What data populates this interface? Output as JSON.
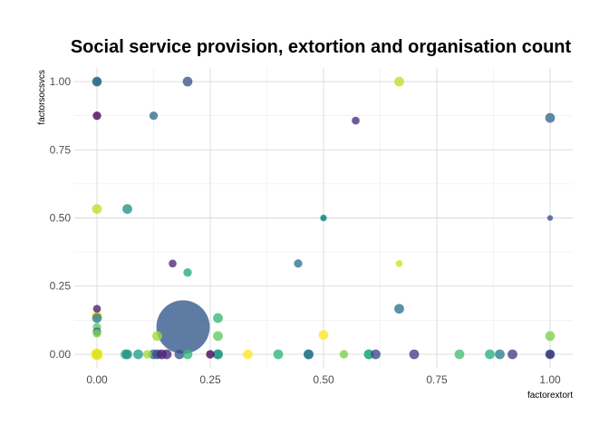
{
  "chart_data": {
    "type": "scatter",
    "title": "Social service provision, extortion and organisation count",
    "xlabel": "factorextort",
    "ylabel": "factorsocsvcs",
    "xlim": [
      -0.05,
      1.05
    ],
    "ylim": [
      -0.05,
      1.05
    ],
    "x_ticks": [
      "0.00",
      "0.25",
      "0.50",
      "0.75",
      "1.00"
    ],
    "y_ticks": [
      "0.00",
      "0.25",
      "0.50",
      "0.75",
      "1.00"
    ],
    "grid": true,
    "legend": "none",
    "size_encoding": "organisation count (area)",
    "points": [
      {
        "x": 0.0,
        "y": 1.0,
        "size": 2,
        "color": "#2a788e"
      },
      {
        "x": 0.0,
        "y": 1.0,
        "size": 1.5,
        "color": "#31688e"
      },
      {
        "x": 0.2,
        "y": 1.0,
        "size": 2,
        "color": "#3b528b"
      },
      {
        "x": 0.667,
        "y": 1.0,
        "size": 2,
        "color": "#bddf26"
      },
      {
        "x": 0.0,
        "y": 0.875,
        "size": 1.5,
        "color": "#440154"
      },
      {
        "x": 0.125,
        "y": 0.875,
        "size": 1.5,
        "color": "#31688e"
      },
      {
        "x": 0.571,
        "y": 0.857,
        "size": 1.3,
        "color": "#472d7b"
      },
      {
        "x": 1.0,
        "y": 0.867,
        "size": 2,
        "color": "#31688e"
      },
      {
        "x": 0.0,
        "y": 0.533,
        "size": 2,
        "color": "#bddf26"
      },
      {
        "x": 0.067,
        "y": 0.533,
        "size": 2,
        "color": "#21918c"
      },
      {
        "x": 0.5,
        "y": 0.5,
        "size": 1,
        "color": "#1e9b8a"
      },
      {
        "x": 0.5,
        "y": 0.5,
        "size": 0.6,
        "color": "#238a8d"
      },
      {
        "x": 1.0,
        "y": 0.5,
        "size": 0.7,
        "color": "#3b528b"
      },
      {
        "x": 0.167,
        "y": 0.333,
        "size": 1.3,
        "color": "#482878"
      },
      {
        "x": 0.2,
        "y": 0.3,
        "size": 1.5,
        "color": "#22a884"
      },
      {
        "x": 0.444,
        "y": 0.333,
        "size": 1.5,
        "color": "#2c728e"
      },
      {
        "x": 0.667,
        "y": 0.333,
        "size": 1,
        "color": "#d2e21b"
      },
      {
        "x": 0.0,
        "y": 0.167,
        "size": 1.3,
        "color": "#481f70"
      },
      {
        "x": 0.667,
        "y": 0.167,
        "size": 2,
        "color": "#2c728e"
      },
      {
        "x": 0.0,
        "y": 0.143,
        "size": 2,
        "color": "#fde725"
      },
      {
        "x": 0.0,
        "y": 0.133,
        "size": 2,
        "color": "#2a788e"
      },
      {
        "x": 0.0,
        "y": 0.1,
        "size": 1.5,
        "color": "#5ec962"
      },
      {
        "x": 0.0,
        "y": 0.083,
        "size": 1.5,
        "color": "#3b528b"
      },
      {
        "x": 0.0,
        "y": 0.077,
        "size": 1.5,
        "color": "#7ad151"
      },
      {
        "x": 0.133,
        "y": 0.067,
        "size": 2,
        "color": "#a0da39"
      },
      {
        "x": 0.19,
        "y": 0.1,
        "size": 60,
        "color": "#31568a"
      },
      {
        "x": 0.267,
        "y": 0.133,
        "size": 2,
        "color": "#35b779"
      },
      {
        "x": 0.267,
        "y": 0.067,
        "size": 2,
        "color": "#5ec962"
      },
      {
        "x": 0.5,
        "y": 0.071,
        "size": 2,
        "color": "#fde725"
      },
      {
        "x": 1.0,
        "y": 0.067,
        "size": 2,
        "color": "#7ad151"
      },
      {
        "x": 0.0,
        "y": 0.0,
        "size": 3,
        "color": "#fde725"
      },
      {
        "x": 0.0,
        "y": 0.0,
        "size": 2,
        "color": "#d2e21b"
      },
      {
        "x": 0.063,
        "y": 0.0,
        "size": 2,
        "color": "#22a884"
      },
      {
        "x": 0.067,
        "y": 0.0,
        "size": 2,
        "color": "#21918c"
      },
      {
        "x": 0.091,
        "y": 0.0,
        "size": 2,
        "color": "#1f9e89"
      },
      {
        "x": 0.111,
        "y": 0.0,
        "size": 1.5,
        "color": "#a0da39"
      },
      {
        "x": 0.125,
        "y": 0.0,
        "size": 2,
        "color": "#2c728e"
      },
      {
        "x": 0.133,
        "y": 0.0,
        "size": 2,
        "color": "#3e4989"
      },
      {
        "x": 0.143,
        "y": 0.0,
        "size": 2,
        "color": "#481f70"
      },
      {
        "x": 0.154,
        "y": 0.0,
        "size": 2,
        "color": "#482878"
      },
      {
        "x": 0.182,
        "y": 0.0,
        "size": 2,
        "color": "#3b528b"
      },
      {
        "x": 0.2,
        "y": 0.0,
        "size": 2,
        "color": "#35b779"
      },
      {
        "x": 0.25,
        "y": 0.0,
        "size": 1.5,
        "color": "#440154"
      },
      {
        "x": 0.267,
        "y": 0.0,
        "size": 2,
        "color": "#43bf71"
      },
      {
        "x": 0.267,
        "y": 0.0,
        "size": 2,
        "color": "#21918c"
      },
      {
        "x": 0.333,
        "y": 0.0,
        "size": 2,
        "color": "#fde725"
      },
      {
        "x": 0.4,
        "y": 0.0,
        "size": 2,
        "color": "#2fb47c"
      },
      {
        "x": 0.467,
        "y": 0.0,
        "size": 2,
        "color": "#31688e"
      },
      {
        "x": 0.467,
        "y": 0.0,
        "size": 2,
        "color": "#287c8e"
      },
      {
        "x": 0.545,
        "y": 0.0,
        "size": 1.5,
        "color": "#7ad151"
      },
      {
        "x": 0.6,
        "y": 0.0,
        "size": 2,
        "color": "#20a386"
      },
      {
        "x": 0.6,
        "y": 0.0,
        "size": 2,
        "color": "#2fb47c"
      },
      {
        "x": 0.615,
        "y": 0.0,
        "size": 2,
        "color": "#3e4989"
      },
      {
        "x": 0.7,
        "y": 0.0,
        "size": 2,
        "color": "#433e85"
      },
      {
        "x": 0.8,
        "y": 0.0,
        "size": 2,
        "color": "#43bf71"
      },
      {
        "x": 0.867,
        "y": 0.0,
        "size": 2,
        "color": "#29af7f"
      },
      {
        "x": 0.889,
        "y": 0.0,
        "size": 2,
        "color": "#287c8e"
      },
      {
        "x": 0.917,
        "y": 0.0,
        "size": 2,
        "color": "#433e85"
      },
      {
        "x": 1.0,
        "y": 0.0,
        "size": 2,
        "color": "#2c728e"
      },
      {
        "x": 1.0,
        "y": 0.0,
        "size": 1.5,
        "color": "#472d7b"
      }
    ]
  }
}
